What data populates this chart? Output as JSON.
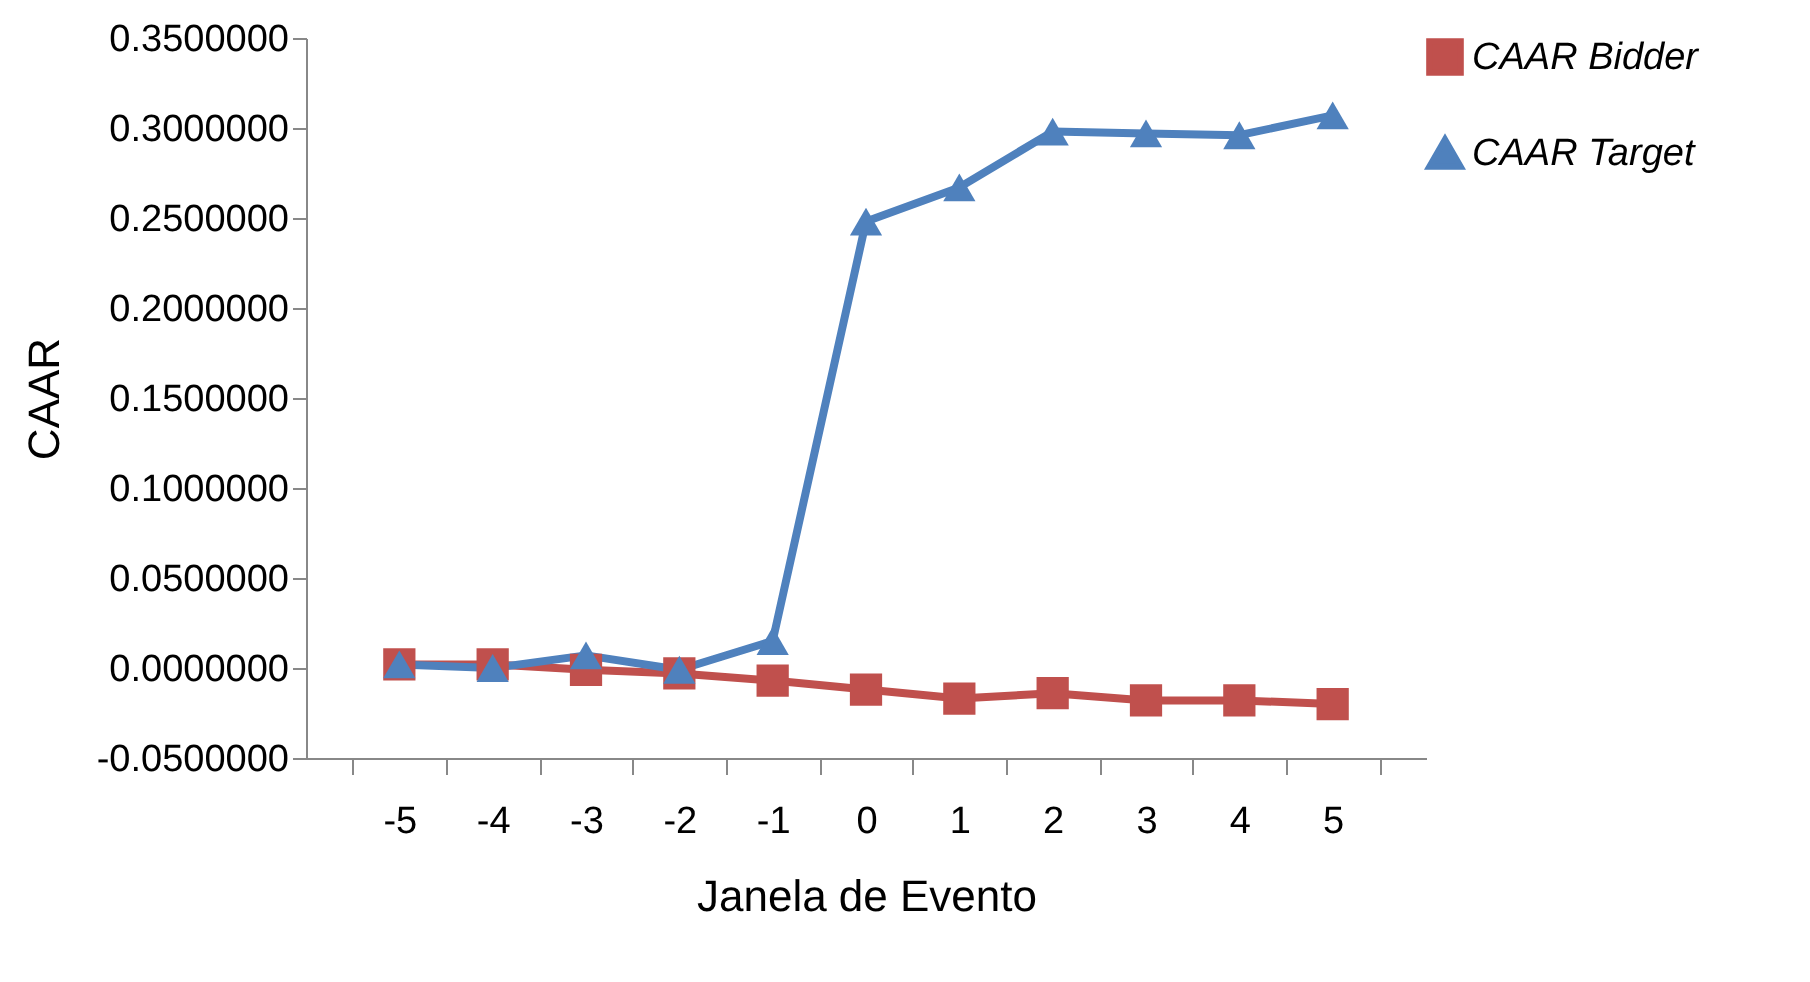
{
  "chart_data": {
    "type": "line",
    "xlabel": "Janela de Evento",
    "ylabel": "CAAR",
    "categories": [
      "-5",
      "-4",
      "-3",
      "-2",
      "-1",
      "0",
      "1",
      "2",
      "3",
      "4",
      "5"
    ],
    "series": [
      {
        "name": "CAAR Bidder",
        "color": "#c0504d",
        "marker": "square",
        "values": [
          0.002,
          0.002,
          -0.001,
          -0.003,
          -0.007,
          -0.012,
          -0.017,
          -0.014,
          -0.018,
          -0.018,
          -0.02
        ]
      },
      {
        "name": "CAAR Target",
        "color": "#4f81bd",
        "marker": "triangle",
        "values": [
          0.002,
          0.0,
          0.007,
          -0.001,
          0.015,
          0.248,
          0.267,
          0.298,
          0.297,
          0.296,
          0.307
        ]
      }
    ],
    "ylim": [
      -0.05,
      0.35
    ],
    "yticks": [
      {
        "value": -0.05,
        "label": "-0.0500000"
      },
      {
        "value": 0,
        "label": "0.0000000"
      },
      {
        "value": 0.05,
        "label": "0.0500000"
      },
      {
        "value": 0.1,
        "label": "0.1000000"
      },
      {
        "value": 0.15,
        "label": "0.1500000"
      },
      {
        "value": 0.2,
        "label": "0.2000000"
      },
      {
        "value": 0.25,
        "label": "0.2500000"
      },
      {
        "value": 0.3,
        "label": "0.3000000"
      },
      {
        "value": 0.35,
        "label": "0.3500000"
      }
    ],
    "grid": false,
    "legend": "right"
  }
}
